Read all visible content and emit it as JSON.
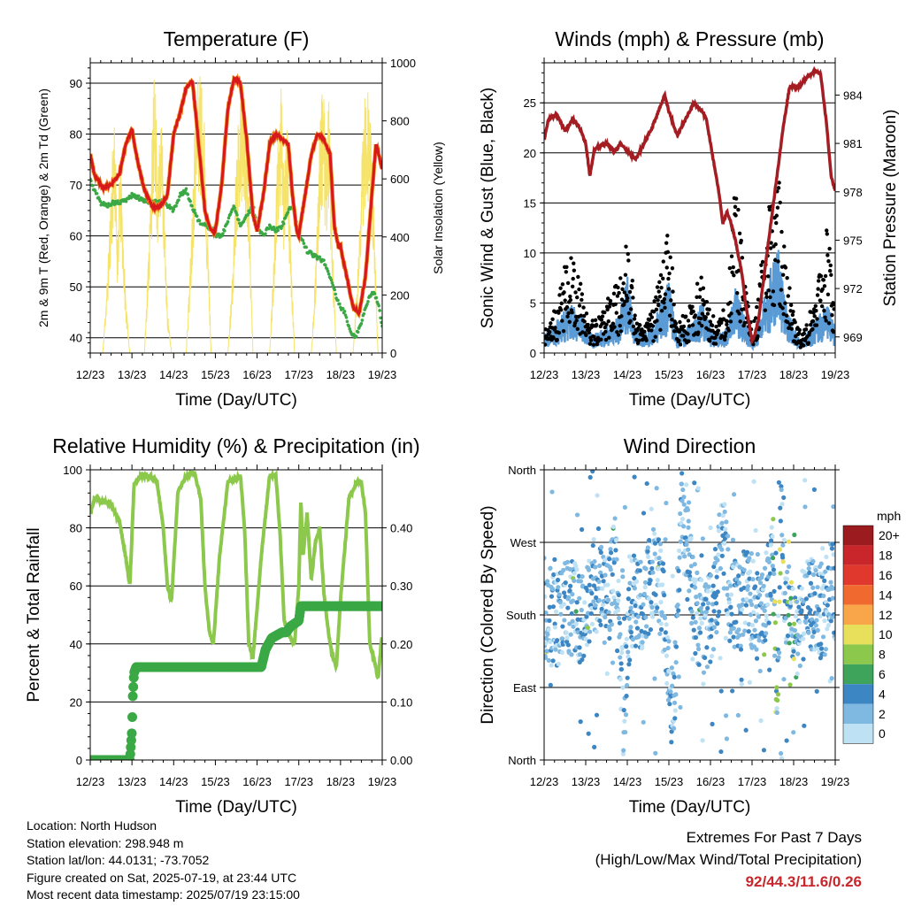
{
  "panels": {
    "temperature": {
      "title": "Temperature (F)",
      "ylabel_left": "2m & 9m T (Red, Orange) & 2m Td (Green)",
      "ylabel_right": "Solar Insolation (Yellow)",
      "xlabel": "Time (Day/UTC)"
    },
    "winds": {
      "title": "Winds (mph) & Pressure (mb)",
      "ylabel_left": "Sonic Wind & Gust (Blue, Black)",
      "ylabel_right": "Station Pressure (Maroon)",
      "xlabel": "Time (Day/UTC)"
    },
    "humidity": {
      "title": "Relative Humidity (%) & Precipitation (in)",
      "ylabel_left": "Percent & Total Rainfall",
      "xlabel": "Time (Day/UTC)"
    },
    "direction": {
      "title": "Wind Direction",
      "ylabel_left": "Direction (Colored By Speed)",
      "xlabel": "Time (Day/UTC)"
    }
  },
  "colorbar": {
    "unit": "mph",
    "labels": [
      "20+",
      "18",
      "16",
      "14",
      "12",
      "10",
      "8",
      "6",
      "4",
      "2",
      "0"
    ],
    "colors": [
      "#9b1b1f",
      "#c8262b",
      "#e0382d",
      "#f06a30",
      "#f9a64a",
      "#e8e05a",
      "#8cc84b",
      "#3fa45b",
      "#3d86c4",
      "#7fb8e0",
      "#bfe1f4"
    ]
  },
  "info": {
    "location": "Location: North Hudson",
    "elevation": "Station elevation: 298.948 m",
    "latlon": "Station lat/lon: 44.0131; -73.7052",
    "created": "Figure created on Sat, 2025-07-19, at 23:44 UTC",
    "recent": "Most recent data timestamp: 2025/07/19 23:15:00"
  },
  "extremes": {
    "line1": "Extremes For Past 7 Days",
    "line2": "(High/Low/Max Wind/Total Precipitation)",
    "values": "92/44.3/11.6/0.26"
  },
  "chart_data": [
    {
      "type": "line",
      "title": "Temperature (F)",
      "xlabel": "Time (Day/UTC)",
      "ylabel": "2m & 9m T (Red, Orange) & 2m Td (Green)",
      "y2label": "Solar Insolation (Yellow)",
      "x_ticks": [
        "12/23",
        "13/23",
        "14/23",
        "15/23",
        "16/23",
        "17/23",
        "18/23",
        "19/23"
      ],
      "xlim": [
        0,
        7
      ],
      "ylim": [
        37,
        94
      ],
      "y_ticks": [
        40,
        50,
        60,
        70,
        80,
        90
      ],
      "y2lim": [
        0,
        1000
      ],
      "y2_ticks": [
        0,
        200,
        400,
        600,
        800,
        1000
      ],
      "grid": true,
      "series": [
        {
          "name": "2m & 9m T",
          "color": "#d7191c",
          "axis": "left",
          "x": [
            0,
            0.1,
            0.3,
            0.5,
            0.7,
            0.85,
            1.0,
            1.15,
            1.3,
            1.5,
            1.7,
            1.85,
            2.0,
            2.15,
            2.3,
            2.45,
            2.6,
            2.75,
            2.85,
            2.95,
            3.0,
            3.15,
            3.3,
            3.45,
            3.6,
            3.75,
            3.9,
            4.0,
            4.15,
            4.3,
            4.45,
            4.6,
            4.75,
            4.85,
            4.95,
            5.0,
            5.15,
            5.3,
            5.45,
            5.6,
            5.75,
            5.85,
            5.95,
            6.0,
            6.15,
            6.3,
            6.45,
            6.6,
            6.75,
            6.85,
            6.95,
            7.0
          ],
          "y": [
            76,
            72,
            69.5,
            70,
            72,
            78,
            81,
            74,
            69,
            65.5,
            66,
            68,
            80,
            84,
            89,
            90.5,
            78,
            65,
            62,
            60.5,
            61,
            70,
            85,
            91,
            90,
            79,
            64,
            61,
            68,
            78,
            80,
            79,
            78,
            68,
            61,
            60,
            68,
            76,
            80,
            79,
            76,
            62,
            58,
            58,
            52,
            46,
            45,
            52,
            68,
            78,
            75,
            73
          ]
        },
        {
          "name": "2m Td",
          "color": "#3aa845",
          "axis": "left",
          "x": [
            0,
            0.1,
            0.25,
            0.4,
            0.55,
            0.7,
            0.85,
            1.0,
            1.15,
            1.3,
            1.5,
            1.7,
            1.85,
            2.0,
            2.15,
            2.3,
            2.45,
            2.6,
            2.75,
            2.9,
            3.0,
            3.15,
            3.3,
            3.45,
            3.6,
            3.75,
            3.9,
            4.0,
            4.15,
            4.3,
            4.45,
            4.6,
            4.75,
            4.85,
            4.95,
            5.0,
            5.1,
            5.2,
            5.4,
            5.6,
            5.8,
            5.9,
            6.0,
            6.1,
            6.2,
            6.35,
            6.5,
            6.6,
            6.7,
            6.8,
            6.9,
            7.0
          ],
          "y": [
            71,
            69,
            66.5,
            66,
            66.5,
            66.5,
            67,
            68,
            67.5,
            67,
            66.5,
            67,
            66,
            65,
            68,
            69,
            65.5,
            63,
            62,
            61.5,
            60,
            60,
            63,
            66,
            62,
            64,
            66,
            62,
            60,
            62,
            61,
            62,
            65,
            66,
            62,
            60,
            59,
            57,
            56,
            55,
            51,
            48,
            46,
            45,
            42,
            40,
            43,
            46,
            48,
            49,
            47,
            42
          ]
        },
        {
          "name": "Solar Insolation",
          "color": "#f6e36a",
          "axis": "right",
          "x": [
            0.3,
            0.42,
            0.5,
            0.58,
            0.65,
            0.72,
            0.85,
            0.95,
            1.3,
            1.42,
            1.5,
            1.55,
            1.62,
            1.7,
            1.78,
            1.85,
            1.95,
            2.3,
            2.42,
            2.5,
            2.58,
            2.65,
            2.72,
            2.8,
            2.9,
            3.3,
            3.42,
            3.5,
            3.58,
            3.65,
            3.72,
            3.8,
            3.9,
            4.3,
            4.42,
            4.5,
            4.58,
            4.65,
            4.72,
            4.8,
            4.9,
            5.3,
            5.42,
            5.5,
            5.58,
            5.65,
            5.72,
            5.8,
            5.9,
            6.3,
            6.42,
            6.5,
            6.58,
            6.65,
            6.72,
            6.8,
            6.9
          ],
          "y": [
            0,
            300,
            600,
            850,
            400,
            700,
            200,
            0,
            0,
            450,
            850,
            1000,
            600,
            900,
            500,
            150,
            0,
            0,
            400,
            800,
            950,
            980,
            900,
            500,
            0,
            0,
            300,
            700,
            900,
            950,
            850,
            600,
            0,
            0,
            400,
            750,
            920,
            600,
            850,
            400,
            0,
            0,
            350,
            800,
            950,
            700,
            900,
            400,
            0,
            0,
            300,
            650,
            900,
            950,
            800,
            500,
            0
          ]
        }
      ]
    },
    {
      "type": "line",
      "title": "Winds (mph) & Pressure (mb)",
      "xlabel": "Time (Day/UTC)",
      "ylabel": "Sonic Wind & Gust (Blue, Black)",
      "y2label": "Station Pressure (Maroon)",
      "x_ticks": [
        "12/23",
        "13/23",
        "14/23",
        "15/23",
        "16/23",
        "17/23",
        "18/23",
        "19/23"
      ],
      "xlim": [
        0,
        7
      ],
      "ylim": [
        0,
        29
      ],
      "y_ticks": [
        0,
        5,
        10,
        15,
        20,
        25
      ],
      "y2lim": [
        968,
        986
      ],
      "y2_ticks": [
        969,
        972,
        975,
        978,
        981,
        984
      ],
      "grid": true,
      "series": [
        {
          "name": "Station Pressure",
          "color": "#a31d22",
          "axis": "right",
          "x": [
            0,
            0.1,
            0.3,
            0.5,
            0.7,
            0.85,
            1.0,
            1.1,
            1.2,
            1.3,
            1.5,
            1.7,
            1.85,
            2.0,
            2.2,
            2.4,
            2.6,
            2.75,
            2.9,
            3.0,
            3.2,
            3.4,
            3.6,
            3.8,
            3.9,
            4.0,
            4.1,
            4.2,
            4.3,
            4.4,
            4.5,
            4.6,
            4.75,
            4.85,
            4.95,
            5.0,
            5.05,
            5.15,
            5.3,
            5.45,
            5.6,
            5.75,
            5.9,
            6.1,
            6.3,
            6.5,
            6.65,
            6.8,
            6.9,
            7.0
          ],
          "y": [
            981.2,
            982.5,
            982.8,
            981.8,
            982.5,
            982,
            981,
            979,
            980.5,
            980.8,
            981,
            980.5,
            981,
            980.5,
            980,
            981,
            982,
            983,
            984,
            983,
            981.5,
            982.5,
            983.5,
            983,
            982.5,
            981,
            979.5,
            978,
            976,
            976.8,
            976,
            975,
            973,
            971,
            969.5,
            968.8,
            969,
            970,
            973,
            976,
            979,
            982,
            984.5,
            984.5,
            985,
            985.5,
            985.3,
            982,
            979,
            978
          ]
        },
        {
          "name": "Sonic Wind",
          "color": "#5b9bd5",
          "axis": "left",
          "x": [
            0,
            0.3,
            0.6,
            0.9,
            1.0,
            1.2,
            1.5,
            1.8,
            2.0,
            2.2,
            2.4,
            2.6,
            2.8,
            3.0,
            3.2,
            3.4,
            3.6,
            3.8,
            4.0,
            4.2,
            4.4,
            4.6,
            4.8,
            5.0,
            5.2,
            5.4,
            5.6,
            5.8,
            6.0,
            6.2,
            6.4,
            6.6,
            6.8,
            7.0
          ],
          "y": [
            1.5,
            2.5,
            4,
            3,
            2,
            1.5,
            2,
            3,
            6,
            2,
            1.5,
            2,
            4,
            6,
            1.5,
            2,
            2.5,
            4,
            2,
            1.5,
            2,
            5,
            3,
            1,
            3,
            6,
            9,
            4,
            2,
            1,
            2,
            3,
            4,
            2
          ]
        },
        {
          "name": "Gust",
          "color": "#000000",
          "axis": "left",
          "x": [
            0,
            0.3,
            0.6,
            0.9,
            1.0,
            1.2,
            1.5,
            1.8,
            2.0,
            2.2,
            2.4,
            2.6,
            2.8,
            3.0,
            3.2,
            3.4,
            3.6,
            3.8,
            4.0,
            4.2,
            4.4,
            4.6,
            4.8,
            5.0,
            5.2,
            5.4,
            5.6,
            5.8,
            6.0,
            6.2,
            6.4,
            6.6,
            6.8,
            7.0
          ],
          "y": [
            2,
            5,
            10,
            7,
            4,
            3,
            5,
            7,
            12,
            4,
            3,
            4,
            8,
            12,
            3,
            4,
            5,
            9,
            4,
            3,
            5,
            17,
            8,
            2,
            8,
            14,
            19,
            9,
            4,
            2,
            4,
            7,
            12,
            6
          ]
        }
      ]
    },
    {
      "type": "line",
      "title": "Relative Humidity (%) & Precipitation (in)",
      "xlabel": "Time (Day/UTC)",
      "ylabel": "Percent & Total Rainfall",
      "x_ticks": [
        "12/23",
        "13/23",
        "14/23",
        "15/23",
        "16/23",
        "17/23",
        "18/23",
        "19/23"
      ],
      "xlim": [
        0,
        7
      ],
      "ylim": [
        0,
        100
      ],
      "y_ticks": [
        0,
        20,
        40,
        60,
        80,
        100
      ],
      "y2lim": [
        0,
        0.5
      ],
      "y2_ticks": [
        0.0,
        0.1,
        0.2,
        0.3,
        0.4
      ],
      "grid": true,
      "series": [
        {
          "name": "Relative Humidity",
          "color": "#8cc84b",
          "axis": "left",
          "x": [
            0,
            0.1,
            0.3,
            0.5,
            0.7,
            0.85,
            0.95,
            1.05,
            1.2,
            1.4,
            1.6,
            1.75,
            1.85,
            1.95,
            2.1,
            2.3,
            2.5,
            2.65,
            2.75,
            2.85,
            2.95,
            3.1,
            3.3,
            3.5,
            3.6,
            3.7,
            3.8,
            3.9,
            4.1,
            4.3,
            4.45,
            4.55,
            4.65,
            4.8,
            4.9,
            5.0,
            5.05,
            5.1,
            5.2,
            5.3,
            5.4,
            5.5,
            5.6,
            5.7,
            5.8,
            5.9,
            6.0,
            6.2,
            6.4,
            6.5,
            6.6,
            6.7,
            6.8,
            6.9,
            7.0
          ],
          "y": [
            85,
            90,
            89,
            88,
            82,
            70,
            60,
            95,
            98,
            98,
            96,
            80,
            60,
            55,
            92,
            98,
            99,
            90,
            60,
            45,
            40,
            70,
            96,
            97,
            98,
            80,
            40,
            35,
            70,
            98,
            98,
            78,
            48,
            42,
            40,
            60,
            90,
            70,
            85,
            62,
            75,
            80,
            58,
            45,
            36,
            32,
            55,
            90,
            96,
            96,
            85,
            40,
            35,
            28,
            44
          ]
        },
        {
          "name": "Total Rainfall",
          "color": "#3aa845",
          "axis": "right",
          "x": [
            0,
            0.95,
            1.0,
            1.02,
            1.05,
            1.1,
            3.0,
            3.4,
            3.8,
            4.1,
            4.2,
            4.35,
            4.6,
            4.7,
            4.8,
            5.0,
            5.05,
            6.0,
            7.0
          ],
          "y": [
            0,
            0,
            0.05,
            0.11,
            0.15,
            0.16,
            0.16,
            0.16,
            0.16,
            0.16,
            0.19,
            0.21,
            0.22,
            0.22,
            0.23,
            0.24,
            0.265,
            0.265,
            0.265
          ]
        }
      ]
    },
    {
      "type": "scatter",
      "title": "Wind Direction",
      "xlabel": "Time (Day/UTC)",
      "ylabel": "Direction (Colored By Speed)",
      "x_ticks": [
        "12/23",
        "13/23",
        "14/23",
        "15/23",
        "16/23",
        "17/23",
        "18/23",
        "19/23"
      ],
      "xlim": [
        0,
        7
      ],
      "y_ticks": [
        "North",
        "East",
        "South",
        "West",
        "North"
      ],
      "ylim": [
        0,
        360
      ],
      "grid": true,
      "series": [
        {
          "name": "direction",
          "x": [
            0.1,
            0.3,
            0.5,
            0.7,
            0.9,
            1.1,
            1.3,
            1.5,
            1.7,
            1.9,
            2.1,
            2.3,
            2.5,
            2.7,
            2.9,
            3.1,
            3.3,
            3.5,
            3.7,
            3.9,
            4.1,
            4.3,
            4.5,
            4.7,
            4.9,
            5.1,
            5.3,
            5.5,
            5.6,
            5.7,
            5.8,
            5.9,
            6.1,
            6.3,
            6.5,
            6.7,
            6.9
          ],
          "y": [
            180,
            170,
            185,
            190,
            175,
            200,
            230,
            180,
            250,
            60,
            200,
            185,
            210,
            240,
            180,
            50,
            300,
            240,
            175,
            160,
            200,
            280,
            185,
            190,
            210,
            180,
            190,
            260,
            20,
            340,
            200,
            180,
            150,
            200,
            190,
            180,
            210
          ]
        }
      ]
    }
  ]
}
